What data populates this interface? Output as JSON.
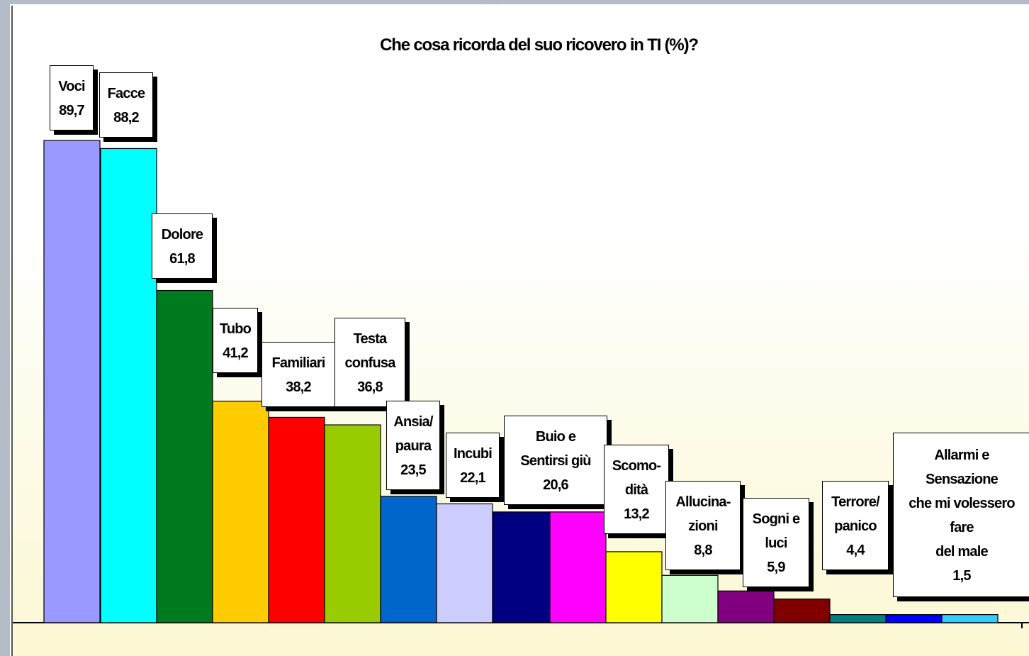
{
  "chart_data": {
    "type": "bar",
    "title": "Che cosa ricorda del suo ricovero in TI (%)?",
    "xlabel": "",
    "ylabel": "",
    "ylim": [
      0,
      100
    ],
    "grid": false,
    "legend": "none",
    "categories": [
      "Voci",
      "Facce",
      "Dolore",
      "Tubo",
      "Familiari",
      "Testa confusa",
      "Ansia/ paura",
      "Incubi",
      "Buio e",
      "Sentirsi giù",
      "Scomo- dità",
      "Allucina- zioni",
      "Sogni e luci",
      "Terrore/ panico",
      "Allarmi e",
      "Sensazione che mi volessero fare del male"
    ],
    "values": [
      89.7,
      88.2,
      61.8,
      41.2,
      38.2,
      36.8,
      23.5,
      22.1,
      20.6,
      20.6,
      13.2,
      8.8,
      5.9,
      4.4,
      1.5,
      1.5
    ],
    "colors": [
      "#9999ff",
      "#00ffff",
      "#007a1f",
      "#ffcc00",
      "#ff0000",
      "#99cc00",
      "#0066cc",
      "#ccccff",
      "#000080",
      "#ff00ff",
      "#ffff00",
      "#ccffcc",
      "#800080",
      "#800000",
      "#008080",
      "#0000ff",
      "#33ccff"
    ],
    "labels": [
      {
        "lines": [
          "Voci",
          "89,7"
        ]
      },
      {
        "lines": [
          "Facce",
          "88,2"
        ]
      },
      {
        "lines": [
          "Dolore",
          "61,8"
        ]
      },
      {
        "lines": [
          "Tubo",
          "41,2"
        ]
      },
      {
        "lines": [
          "Familiari",
          "38,2"
        ]
      },
      {
        "lines": [
          "Testa",
          "confusa",
          "36,8"
        ]
      },
      {
        "lines": [
          "Ansia/",
          "paura",
          "23,5"
        ]
      },
      {
        "lines": [
          "Incubi",
          "22,1"
        ]
      },
      {
        "lines": [
          "Buio e",
          "Sentirsi giù",
          "20,6"
        ]
      },
      {
        "lines": [
          "Scomo-",
          "dità",
          "13,2"
        ]
      },
      {
        "lines": [
          "Allucina-",
          "zioni",
          "8,8"
        ]
      },
      {
        "lines": [
          "Sogni e",
          "luci",
          "5,9"
        ]
      },
      {
        "lines": [
          "Terrore/",
          "panico",
          "4,4"
        ]
      },
      {
        "lines": [
          "Allarmi e",
          "Sensazione",
          "che mi volessero",
          "fare",
          "del male",
          "1,5"
        ]
      }
    ]
  }
}
